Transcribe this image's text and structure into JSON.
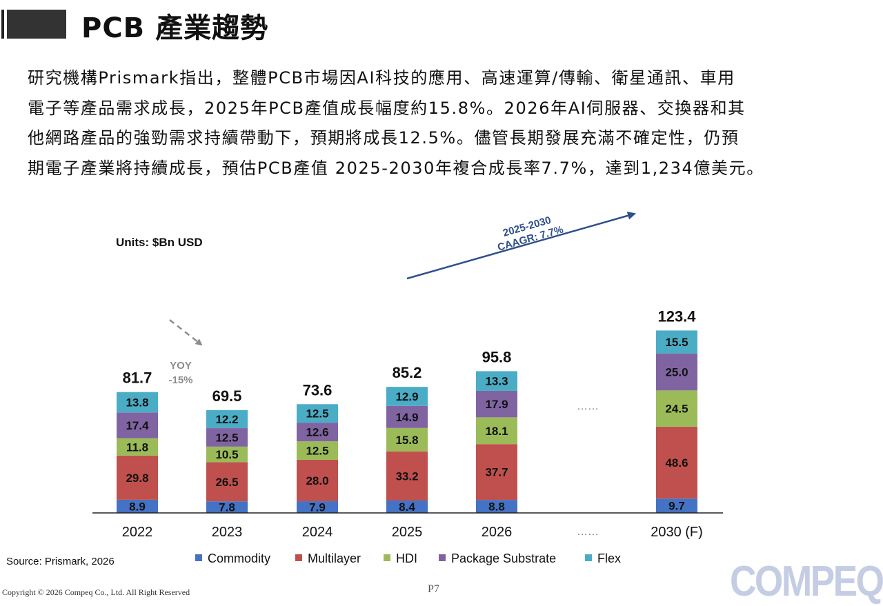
{
  "header": {
    "title": "PCB 產業趨勢"
  },
  "intro": {
    "lines": [
      "研究機構Prismark指出，整體PCB市場因AI科技的應用、高速運算/傳輸、衛星通訊、車用",
      "電子等產品需求成長，2025年PCB產值成長幅度約15.8%。2026年AI伺服器、交換器和其",
      "他網路產品的強勁需求持續帶動下，預期將成長12.5%。儘管長期發展充滿不確定性，仍預",
      "期電子產業將持續成長，預估PCB產值 2025-2030年複合成長率7.7%，達到1,234億美元。"
    ]
  },
  "chart_data": {
    "type": "bar",
    "stacked": true,
    "units": "Units: $Bn USD",
    "categories": [
      "2022",
      "2023",
      "2024",
      "2025",
      "2026",
      "2030 (F)"
    ],
    "gap_label": "……",
    "totals": [
      81.7,
      69.5,
      73.6,
      85.2,
      95.8,
      123.4
    ],
    "series": [
      {
        "name": "Commodity",
        "color": "#4472c4",
        "values": [
          8.9,
          7.8,
          7.9,
          8.4,
          8.8,
          9.7
        ]
      },
      {
        "name": "Multilayer",
        "color": "#c0504d",
        "values": [
          29.8,
          26.5,
          28.0,
          33.2,
          37.7,
          48.6
        ]
      },
      {
        "name": "HDI",
        "color": "#9bbb59",
        "values": [
          11.8,
          10.5,
          12.5,
          15.8,
          18.1,
          24.5
        ]
      },
      {
        "name": "Package Substrate",
        "color": "#8064a2",
        "values": [
          17.4,
          12.5,
          12.6,
          14.9,
          17.9,
          25.0
        ]
      },
      {
        "name": "Flex",
        "color": "#4bacc6",
        "values": [
          13.8,
          12.2,
          12.5,
          12.9,
          13.3,
          15.5
        ]
      }
    ],
    "annotations": {
      "yoy_line1": "YOY",
      "yoy_line2": "-15%",
      "cagr_line1": "2025-2030",
      "cagr_line2": "CAAGR: 7.7%"
    },
    "legend_position": "bottom",
    "grid": false
  },
  "footer": {
    "source": "Source: Prismark, 2026",
    "copyright": "Copyright © 2026 Compeq Co., Ltd. All Right Reserved",
    "page": "P7",
    "logo": "COMPEQ"
  }
}
